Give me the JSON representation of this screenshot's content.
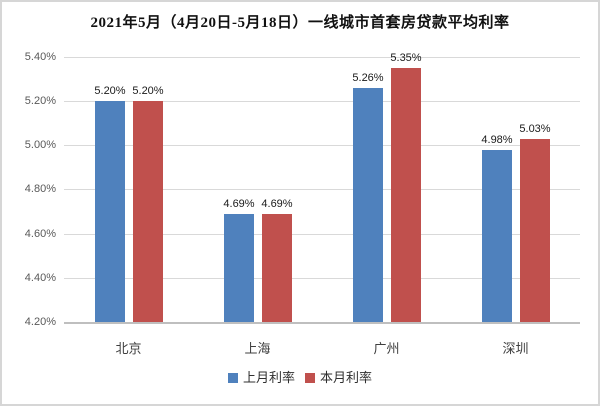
{
  "colors": {
    "series_last_month": "#4F81BD",
    "series_this_month": "#C0504D",
    "gridline": "#D9D9D9",
    "axis_line": "#BFBFBF",
    "tick_text": "#595959",
    "value_label_text": "#1a1a1a",
    "title_text": "#111111",
    "frame_border": "#D6D6D6",
    "background": "#FFFFFF"
  },
  "chart_data": {
    "type": "bar",
    "title": "2021年5月（4月20日-5月18日）一线城市首套房贷款平均利率",
    "categories": [
      "北京",
      "上海",
      "广州",
      "深圳"
    ],
    "series": [
      {
        "name": "上月利率",
        "color": "#4F81BD",
        "values": [
          5.2,
          4.69,
          5.26,
          4.98
        ],
        "labels": [
          "5.20%",
          "4.69%",
          "5.26%",
          "4.98%"
        ]
      },
      {
        "name": "本月利率",
        "color": "#C0504D",
        "values": [
          5.2,
          4.69,
          5.35,
          5.03
        ],
        "labels": [
          "5.20%",
          "4.69%",
          "5.35%",
          "5.03%"
        ]
      }
    ],
    "xlabel": "",
    "ylabel": "",
    "ylim": [
      4.2,
      5.4
    ],
    "ytick_step": 0.2,
    "ytick_labels": [
      "5.40%",
      "5.20%",
      "5.00%",
      "4.80%",
      "4.60%",
      "4.40%",
      "4.20%"
    ],
    "grid": true,
    "legend_position": "bottom",
    "data_labels": true
  }
}
